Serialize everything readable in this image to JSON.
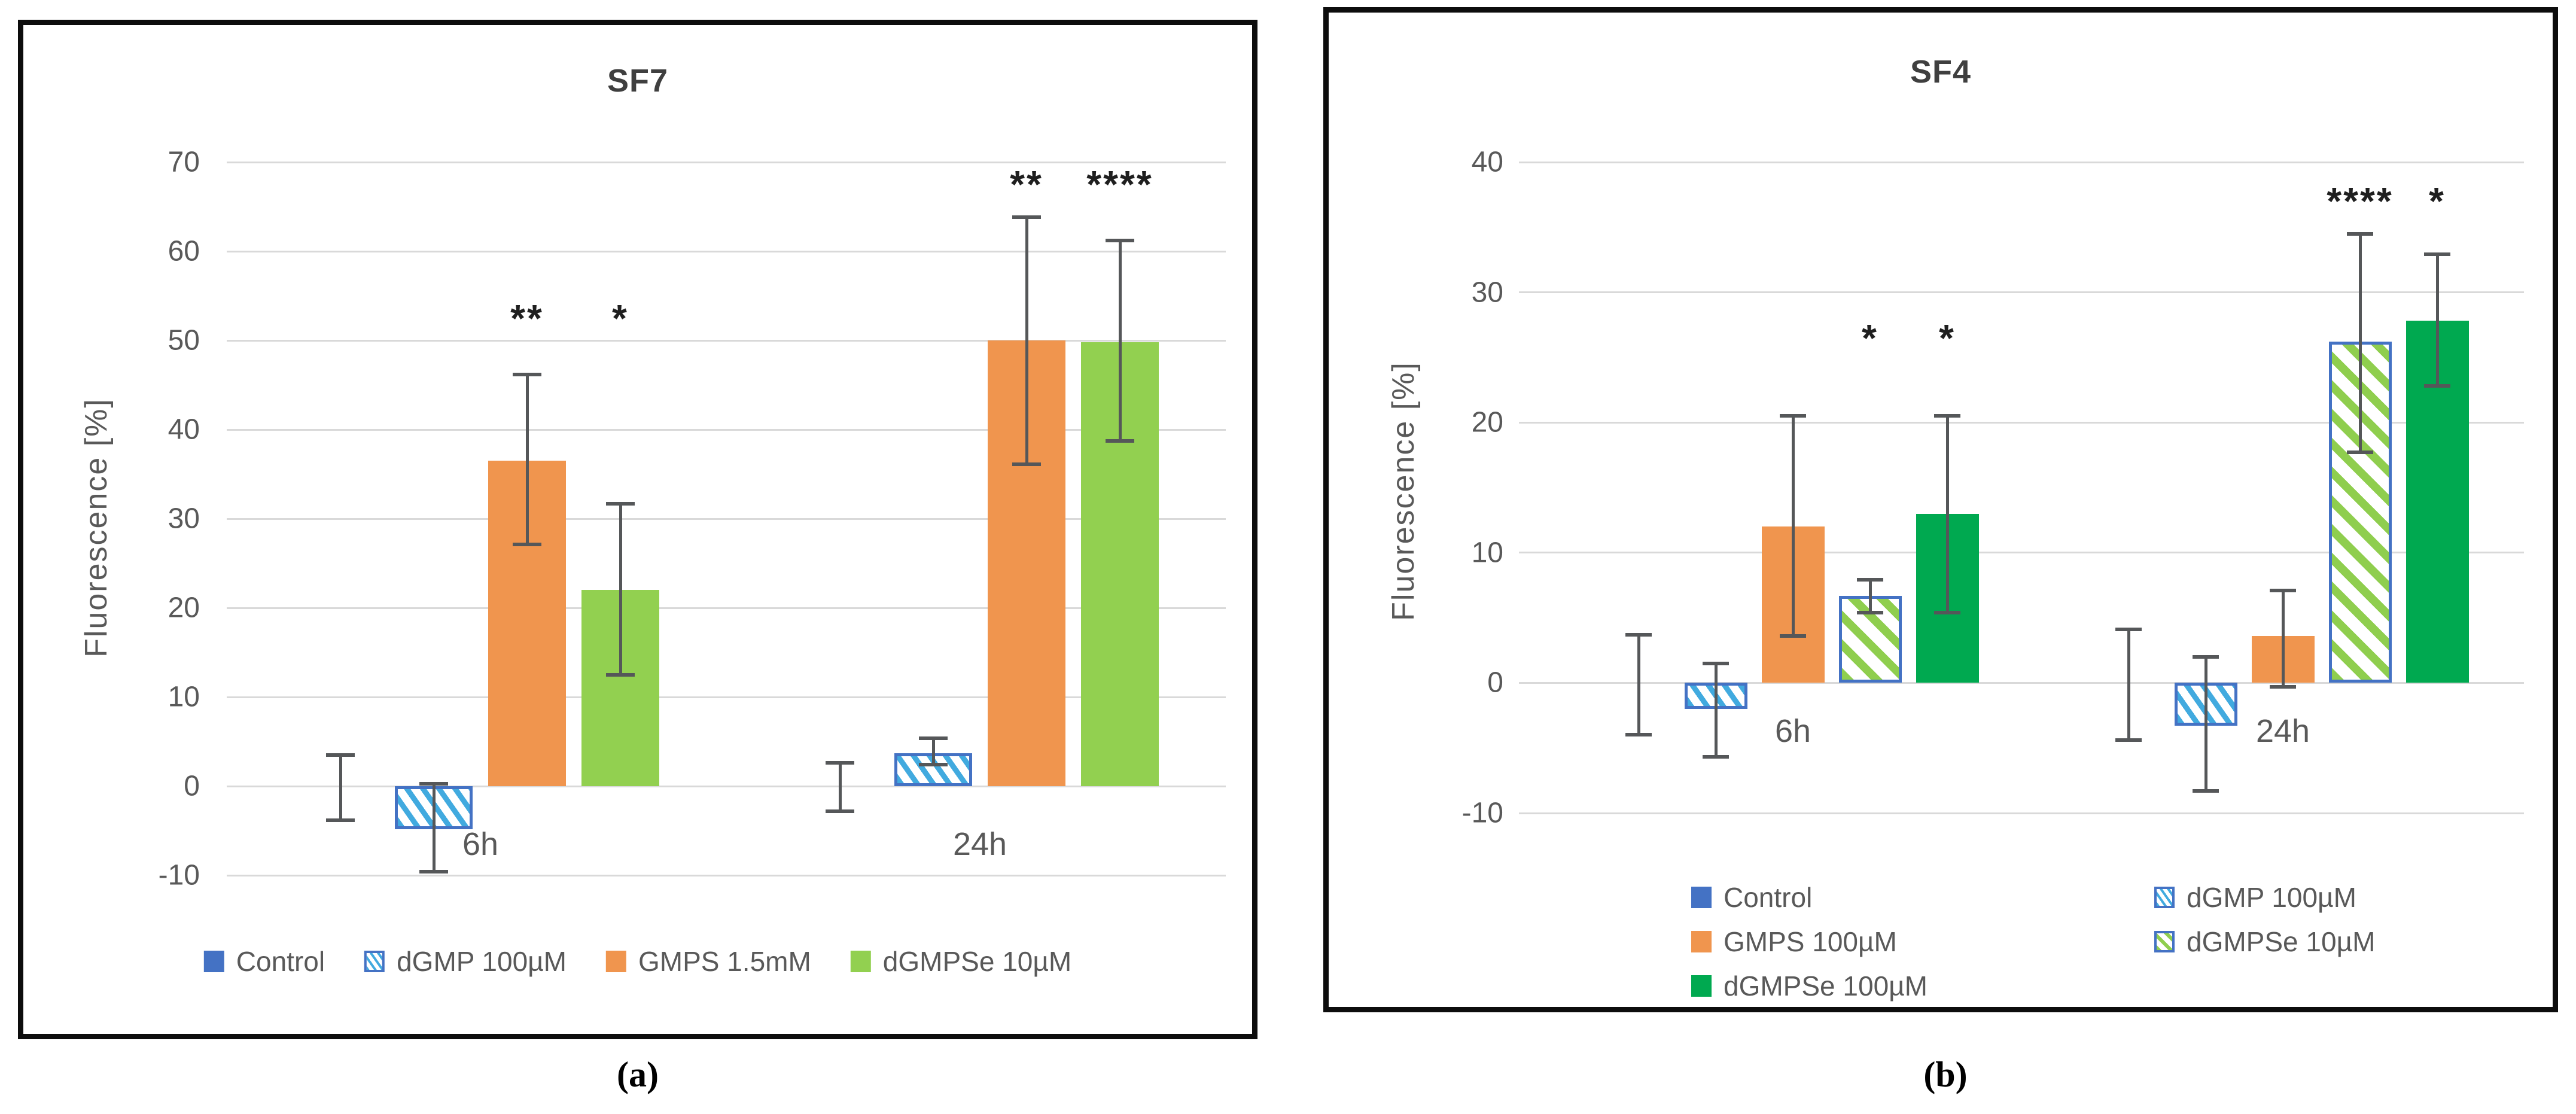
{
  "figure": {
    "captions": {
      "a": "(a)",
      "b": "(b)"
    }
  },
  "colors": {
    "excel_blue": "#4472C4",
    "hatch_blue_stripe": "#41AADF",
    "orange": "#F0954E",
    "light_green": "#92D050",
    "dark_green": "#00A950",
    "gridline": "#D9D9D9",
    "error_bar": "#555759",
    "text": "#595959",
    "title": "#3F3F3F",
    "panel_border": "#0D0D0D",
    "significance": "#1F1F1F"
  },
  "chart_data": [
    {
      "id": "a",
      "type": "bar",
      "title": "SF7",
      "ylabel": "Fluorescence [%]",
      "ylim": [
        -10,
        70
      ],
      "yticks": [
        70,
        60,
        50,
        40,
        30,
        20,
        10,
        0,
        -10
      ],
      "grid": true,
      "legend_position": "bottom-center-row",
      "categories": [
        "6h",
        "24h"
      ],
      "sig_y": [
        52.5,
        67.5
      ],
      "series": [
        {
          "name": "Control",
          "swatch": "solid",
          "color_key": "excel_blue",
          "values": [
            0,
            0
          ],
          "err_high": [
            3.5,
            2.6
          ],
          "err_low": [
            -3.8,
            -2.8
          ],
          "sig": [
            null,
            null
          ]
        },
        {
          "name": "dGMP 100µM",
          "swatch": "hatch-blue",
          "color_key": null,
          "values": [
            -4.8,
            3.7
          ],
          "err_high": [
            0.3,
            5.4
          ],
          "err_low": [
            -9.6,
            2.4
          ],
          "sig": [
            null,
            null
          ]
        },
        {
          "name": "GMPS 1.5mM",
          "swatch": "solid",
          "color_key": "orange",
          "values": [
            36.5,
            50.0
          ],
          "err_high": [
            46.2,
            63.8
          ],
          "err_low": [
            27.1,
            36.1
          ],
          "sig": [
            "**",
            "**"
          ]
        },
        {
          "name": "dGMPSe 10µM",
          "swatch": "solid",
          "color_key": "light_green",
          "values": [
            22.0,
            49.8
          ],
          "err_high": [
            31.7,
            61.2
          ],
          "err_low": [
            12.5,
            38.7
          ],
          "sig": [
            "*",
            "****"
          ]
        }
      ]
    },
    {
      "id": "b",
      "type": "bar",
      "title": "SF4",
      "ylabel": "Fluorescence [%]",
      "ylim": [
        -10,
        40
      ],
      "yticks": [
        40,
        30,
        20,
        10,
        0,
        -10
      ],
      "grid": true,
      "legend_position": "bottom-two-columns",
      "categories": [
        "6h",
        "24h"
      ],
      "sig_y": [
        26.5,
        37.0
      ],
      "series": [
        {
          "name": "Control",
          "swatch": "solid",
          "color_key": "excel_blue",
          "values": [
            0,
            0
          ],
          "err_high": [
            3.7,
            4.1
          ],
          "err_low": [
            -4.0,
            -4.4
          ],
          "sig": [
            null,
            null
          ]
        },
        {
          "name": "dGMP 100µM",
          "swatch": "hatch-blue",
          "color_key": null,
          "values": [
            -2.0,
            -3.3
          ],
          "err_high": [
            1.5,
            2.0
          ],
          "err_low": [
            -5.7,
            -8.3
          ],
          "sig": [
            null,
            null
          ]
        },
        {
          "name": "GMPS 100µM",
          "swatch": "solid",
          "color_key": "orange",
          "values": [
            12.0,
            3.6
          ],
          "err_high": [
            20.5,
            7.1
          ],
          "err_low": [
            3.6,
            -0.3
          ],
          "sig": [
            null,
            null
          ]
        },
        {
          "name": "dGMPSe 10µM",
          "swatch": "hatch-green",
          "color_key": null,
          "values": [
            6.7,
            26.2
          ],
          "err_high": [
            7.9,
            34.5
          ],
          "err_low": [
            5.4,
            17.7
          ],
          "sig": [
            "*",
            "****"
          ]
        },
        {
          "name": "dGMPSe 100µM",
          "swatch": "solid",
          "color_key": "dark_green",
          "values": [
            13.0,
            27.8
          ],
          "err_high": [
            20.5,
            32.9
          ],
          "err_low": [
            5.4,
            22.8
          ],
          "sig": [
            "*",
            "*"
          ]
        }
      ]
    }
  ]
}
